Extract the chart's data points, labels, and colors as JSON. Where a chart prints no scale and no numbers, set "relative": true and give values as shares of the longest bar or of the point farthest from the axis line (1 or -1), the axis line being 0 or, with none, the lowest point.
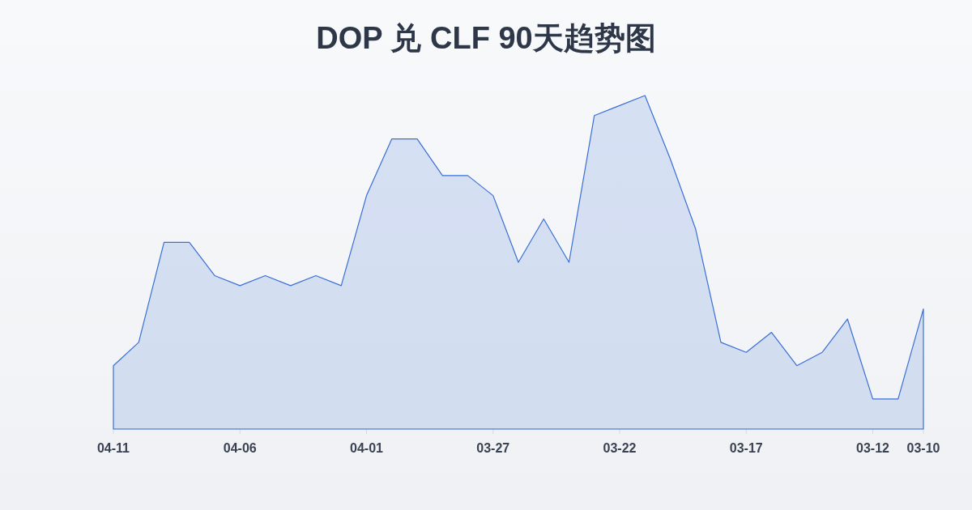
{
  "chart_data": {
    "type": "area",
    "title": "DOP 兑 CLF 90天趋势图",
    "categories": [
      "04-11",
      null,
      null,
      null,
      null,
      "04-06",
      null,
      null,
      null,
      null,
      "04-01",
      null,
      null,
      null,
      null,
      "03-27",
      null,
      null,
      null,
      null,
      "03-22",
      null,
      null,
      null,
      null,
      "03-17",
      null,
      null,
      null,
      null,
      "03-12",
      null,
      "03-10"
    ],
    "values": [
      0.19,
      0.26,
      0.56,
      0.56,
      0.46,
      0.43,
      0.46,
      0.43,
      0.46,
      0.43,
      0.7,
      0.87,
      0.87,
      0.76,
      0.76,
      0.7,
      0.5,
      0.63,
      0.5,
      0.94,
      0.97,
      1,
      0.81,
      0.6,
      0.26,
      0.23,
      0.29,
      0.19,
      0.23,
      0.33,
      0.09,
      0.09,
      0.36
    ],
    "color": "#3a6fd6",
    "relative": true
  }
}
